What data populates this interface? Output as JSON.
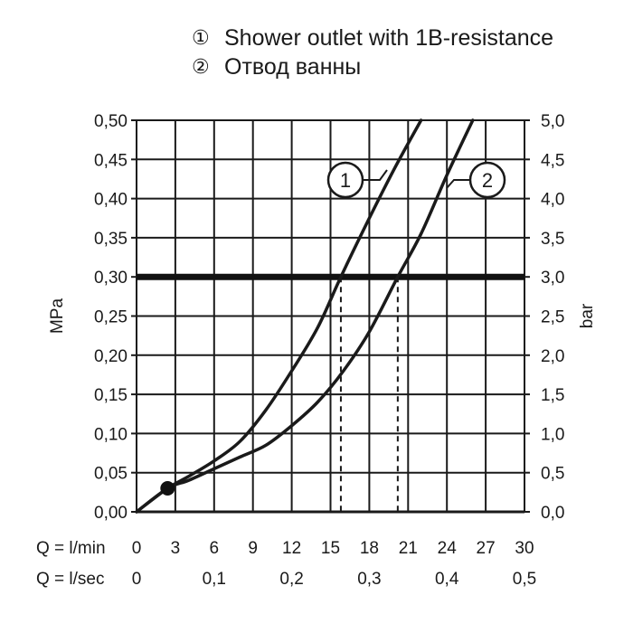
{
  "chart_data": {
    "type": "line",
    "legend": [
      {
        "marker": "①",
        "label": "Shower outlet with 1B-resistance"
      },
      {
        "marker": "②",
        "label": "Отвод ванны"
      }
    ],
    "y_left": {
      "label": "MPa",
      "range": [
        0,
        0.5
      ],
      "ticks": [
        "0,00",
        "0,05",
        "0,10",
        "0,15",
        "0,20",
        "0,25",
        "0,30",
        "0,35",
        "0,40",
        "0,45",
        "0,50"
      ]
    },
    "y_right": {
      "label": "bar",
      "range": [
        0,
        5
      ],
      "ticks": [
        "0,0",
        "0,5",
        "1,0",
        "1,5",
        "2,0",
        "2,5",
        "3,0",
        "3,5",
        "4,0",
        "4,5",
        "5,0"
      ]
    },
    "x_lmin": {
      "label": "Q = l/min",
      "range": [
        0,
        30
      ],
      "ticks": [
        "0",
        "3",
        "6",
        "9",
        "12",
        "15",
        "18",
        "21",
        "24",
        "27",
        "30"
      ]
    },
    "x_lsec": {
      "label": "Q = l/sec",
      "ticks": [
        {
          "value": 0,
          "text": "0"
        },
        {
          "value": 0.1,
          "text": "0,1"
        },
        {
          "value": 0.2,
          "text": "0,2"
        },
        {
          "value": 0.3,
          "text": "0,3"
        },
        {
          "value": 0.4,
          "text": "0,4"
        },
        {
          "value": 0.5,
          "text": "0,5"
        }
      ]
    },
    "reference_line": {
      "y": 0.3
    },
    "marked_point": {
      "x": 2.4,
      "y": 0.03
    },
    "series": [
      {
        "callout": "1",
        "x": [
          0,
          2.4,
          4,
          6,
          8,
          10,
          12,
          14,
          15.8,
          18,
          20,
          22
        ],
        "y": [
          0,
          0.03,
          0.045,
          0.065,
          0.09,
          0.13,
          0.18,
          0.235,
          0.3,
          0.375,
          0.44,
          0.5
        ],
        "drop_x": 15.8
      },
      {
        "callout": "2",
        "x": [
          0,
          2.4,
          4,
          6,
          8,
          10,
          12,
          14,
          16,
          18,
          20.2,
          22,
          24,
          26
        ],
        "y": [
          0,
          0.03,
          0.04,
          0.055,
          0.07,
          0.085,
          0.11,
          0.14,
          0.18,
          0.23,
          0.3,
          0.355,
          0.43,
          0.5
        ],
        "drop_x": 20.2
      }
    ]
  }
}
